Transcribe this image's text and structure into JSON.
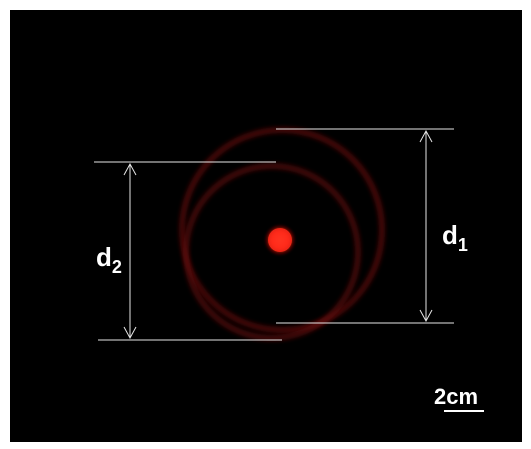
{
  "labels": {
    "d1_main": "d",
    "d1_sub": "1",
    "d2_main": "d",
    "d2_sub": "2",
    "scale_bar": "2cm"
  },
  "colors": {
    "background": "#000000",
    "frame": "#ffffff",
    "ring": "#7a0f0f",
    "spot": "#ff2a1a",
    "annotation": "#ffffff"
  }
}
